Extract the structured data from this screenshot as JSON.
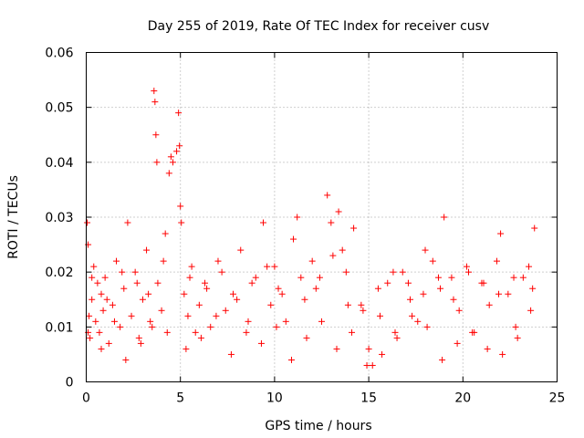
{
  "chart_data": {
    "type": "scatter",
    "title": "Day 255 of 2019, Rate Of TEC Index for receiver cusv",
    "xlabel": "GPS time / hours",
    "ylabel": "ROTI / TECUs",
    "xlim": [
      0,
      25
    ],
    "ylim": [
      0,
      0.06
    ],
    "x_ticks": [
      "0",
      "5",
      "10",
      "15",
      "20",
      "25"
    ],
    "y_ticks": [
      "0",
      "0.01",
      "0.02",
      "0.03",
      "0.04",
      "0.05",
      "0.06"
    ],
    "grid": true,
    "marker": "+",
    "color": "#ff0000",
    "series": [
      {
        "name": "ROTI",
        "x": [
          0.05,
          0.1,
          0.15,
          0.2,
          0.3,
          0.4,
          0.5,
          0.6,
          0.7,
          0.8,
          0.9,
          1.0,
          1.2,
          1.4,
          1.6,
          1.8,
          2.0,
          2.2,
          2.4,
          2.6,
          2.8,
          3.0,
          3.2,
          3.4,
          3.6,
          3.65,
          3.7,
          3.75,
          3.8,
          4.0,
          4.2,
          4.4,
          4.5,
          4.6,
          4.8,
          4.9,
          4.95,
          5.0,
          5.05,
          5.2,
          5.4,
          5.6,
          5.8,
          6.0,
          6.3,
          6.6,
          7.0,
          7.4,
          7.8,
          8.2,
          8.6,
          9.0,
          9.4,
          9.8,
          10.0,
          10.2,
          10.6,
          11.0,
          11.2,
          11.6,
          12.0,
          12.4,
          12.8,
          13.0,
          13.4,
          13.6,
          13.8,
          14.2,
          14.6,
          15.0,
          15.2,
          15.6,
          16.0,
          16.4,
          16.8,
          17.2,
          17.6,
          18.0,
          18.4,
          18.8,
          19.0,
          19.4,
          19.8,
          20.2,
          20.6,
          21.0,
          21.4,
          21.8,
          22.0,
          22.4,
          22.8,
          23.2,
          23.6,
          23.8,
          0.1,
          0.8,
          1.5,
          2.1,
          2.9,
          3.5,
          4.3,
          5.3,
          6.1,
          6.9,
          7.7,
          8.5,
          9.3,
          10.1,
          10.9,
          11.7,
          12.5,
          13.3,
          14.1,
          14.9,
          15.7,
          16.5,
          17.3,
          18.1,
          18.9,
          19.7,
          20.5,
          21.3,
          22.1,
          22.9,
          23.7,
          0.3,
          1.1,
          1.9,
          2.7,
          3.3,
          4.1,
          5.5,
          6.4,
          7.2,
          8.0,
          8.8,
          9.6,
          10.4,
          11.4,
          12.2,
          13.1,
          13.9,
          14.7,
          15.5,
          16.3,
          17.1,
          17.9,
          18.7,
          19.5,
          20.3,
          21.1,
          21.9,
          22.7,
          23.5
        ],
        "y": [
          0.029,
          0.025,
          0.012,
          0.008,
          0.015,
          0.021,
          0.011,
          0.018,
          0.009,
          0.016,
          0.013,
          0.019,
          0.007,
          0.014,
          0.022,
          0.01,
          0.017,
          0.029,
          0.012,
          0.02,
          0.008,
          0.015,
          0.024,
          0.011,
          0.053,
          0.051,
          0.045,
          0.04,
          0.018,
          0.013,
          0.027,
          0.038,
          0.041,
          0.04,
          0.042,
          0.049,
          0.043,
          0.032,
          0.029,
          0.016,
          0.012,
          0.021,
          0.009,
          0.014,
          0.018,
          0.01,
          0.022,
          0.013,
          0.016,
          0.024,
          0.011,
          0.019,
          0.029,
          0.014,
          0.021,
          0.017,
          0.011,
          0.026,
          0.03,
          0.015,
          0.022,
          0.019,
          0.034,
          0.029,
          0.031,
          0.024,
          0.02,
          0.028,
          0.014,
          0.006,
          0.003,
          0.012,
          0.018,
          0.009,
          0.02,
          0.015,
          0.011,
          0.024,
          0.022,
          0.017,
          0.03,
          0.019,
          0.013,
          0.021,
          0.009,
          0.018,
          0.014,
          0.022,
          0.027,
          0.016,
          0.01,
          0.019,
          0.013,
          0.028,
          0.009,
          0.006,
          0.011,
          0.004,
          0.007,
          0.01,
          0.009,
          0.006,
          0.008,
          0.012,
          0.005,
          0.009,
          0.007,
          0.01,
          0.004,
          0.008,
          0.011,
          0.006,
          0.009,
          0.003,
          0.005,
          0.008,
          0.012,
          0.01,
          0.004,
          0.007,
          0.009,
          0.006,
          0.005,
          0.008,
          0.017,
          0.019,
          0.015,
          0.02,
          0.018,
          0.016,
          0.022,
          0.019,
          0.017,
          0.02,
          0.015,
          0.018,
          0.021,
          0.016,
          0.019,
          0.017,
          0.023,
          0.014,
          0.013,
          0.017,
          0.02,
          0.018,
          0.016,
          0.019,
          0.015,
          0.02,
          0.018,
          0.016,
          0.019,
          0.021
        ]
      }
    ]
  }
}
